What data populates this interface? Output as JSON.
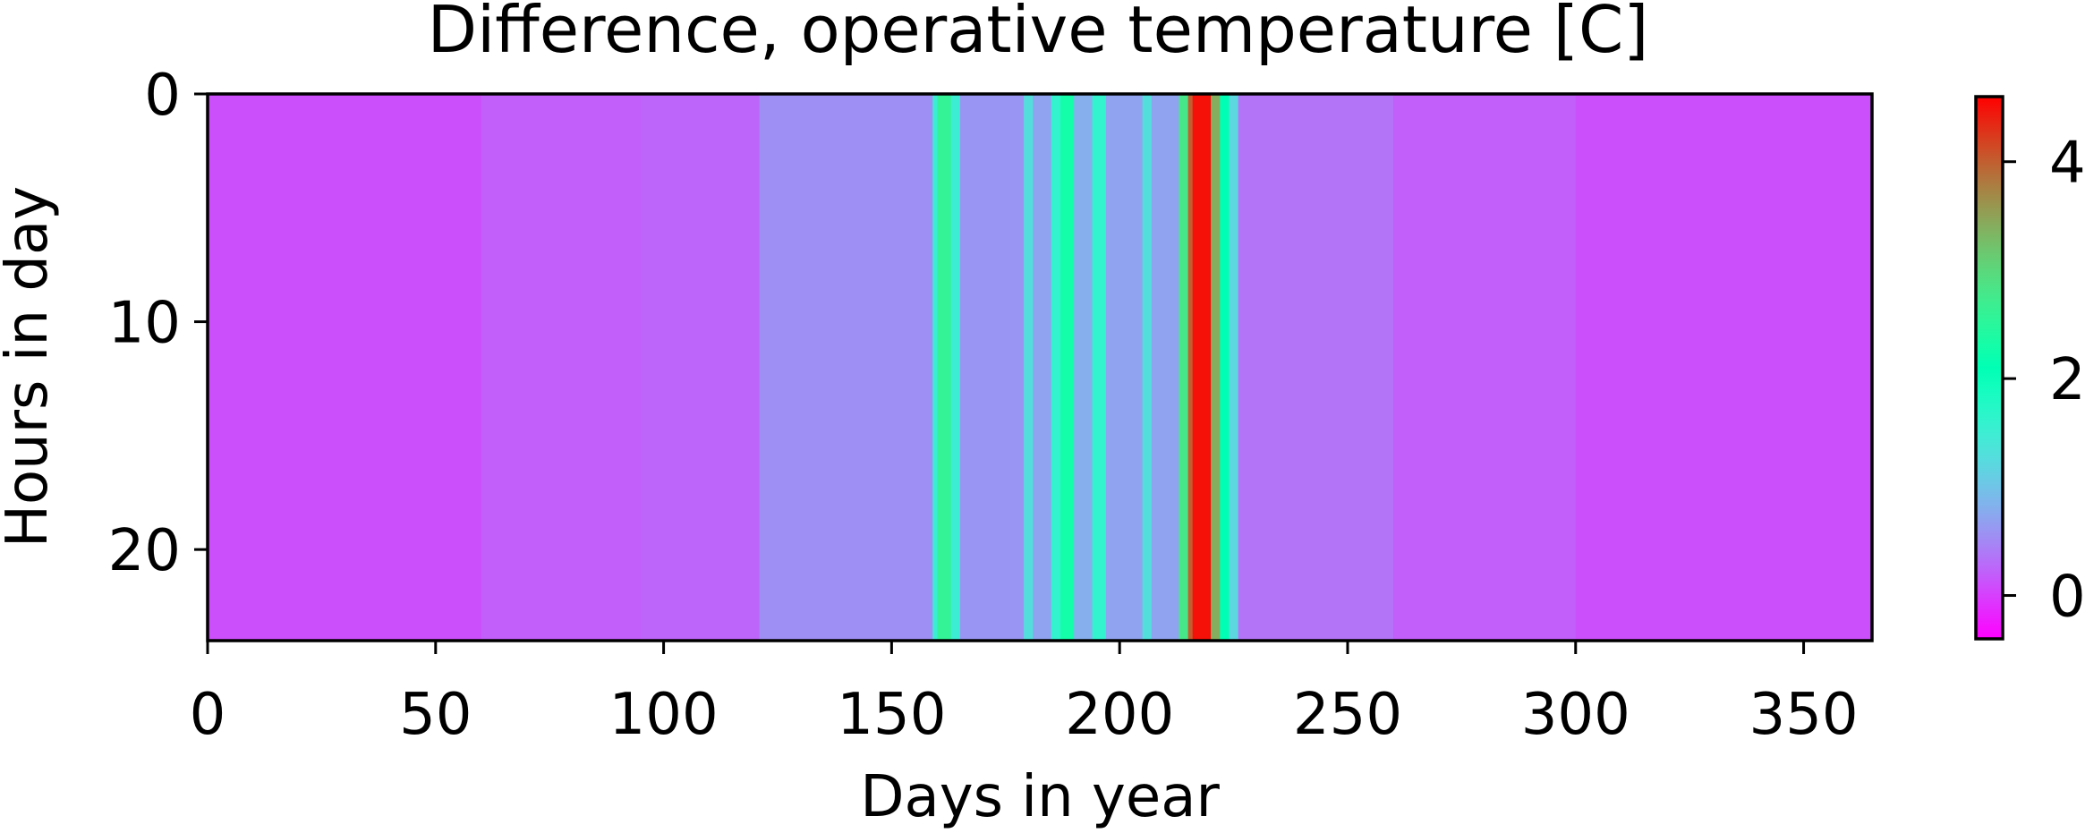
{
  "chart_data": {
    "type": "heatmap",
    "title": "Difference, operative temperature [C]",
    "xlabel": "Days in year",
    "ylabel": "Hours in day",
    "xlim": [
      0,
      365
    ],
    "ylim": [
      24,
      0
    ],
    "xticks": [
      0,
      50,
      100,
      150,
      200,
      250,
      300,
      350
    ],
    "yticks": [
      0,
      10,
      20
    ],
    "colorbar": {
      "colormap": "rainbow",
      "range": [
        -0.4,
        4.6
      ],
      "ticks": [
        0,
        2,
        4
      ]
    },
    "grid": false,
    "daily_values_note_free": true,
    "day_bands": [
      {
        "start": 0,
        "end": 60,
        "value": 0.1
      },
      {
        "start": 60,
        "end": 95,
        "value": 0.2
      },
      {
        "start": 95,
        "end": 121,
        "value": 0.25
      },
      {
        "start": 121,
        "end": 159,
        "value": 0.55
      },
      {
        "start": 159,
        "end": 160,
        "value": 1.5
      },
      {
        "start": 160,
        "end": 163,
        "value": 2.6
      },
      {
        "start": 163,
        "end": 165,
        "value": 1.5
      },
      {
        "start": 165,
        "end": 179,
        "value": 0.6
      },
      {
        "start": 179,
        "end": 181,
        "value": 1.3
      },
      {
        "start": 181,
        "end": 185,
        "value": 0.7
      },
      {
        "start": 185,
        "end": 187,
        "value": 1.6
      },
      {
        "start": 187,
        "end": 190,
        "value": 2.3
      },
      {
        "start": 190,
        "end": 194,
        "value": 0.8
      },
      {
        "start": 194,
        "end": 197,
        "value": 1.6
      },
      {
        "start": 197,
        "end": 205,
        "value": 0.7
      },
      {
        "start": 205,
        "end": 207,
        "value": 1.3
      },
      {
        "start": 207,
        "end": 213,
        "value": 0.7
      },
      {
        "start": 213,
        "end": 215,
        "value": 2.8
      },
      {
        "start": 215,
        "end": 216,
        "value": 4.0
      },
      {
        "start": 216,
        "end": 220,
        "value": 4.5
      },
      {
        "start": 220,
        "end": 222,
        "value": 3.4
      },
      {
        "start": 222,
        "end": 224,
        "value": 2.1
      },
      {
        "start": 224,
        "end": 226,
        "value": 1.2
      },
      {
        "start": 226,
        "end": 260,
        "value": 0.35
      },
      {
        "start": 260,
        "end": 300,
        "value": 0.2
      },
      {
        "start": 300,
        "end": 365,
        "value": 0.1
      }
    ]
  }
}
